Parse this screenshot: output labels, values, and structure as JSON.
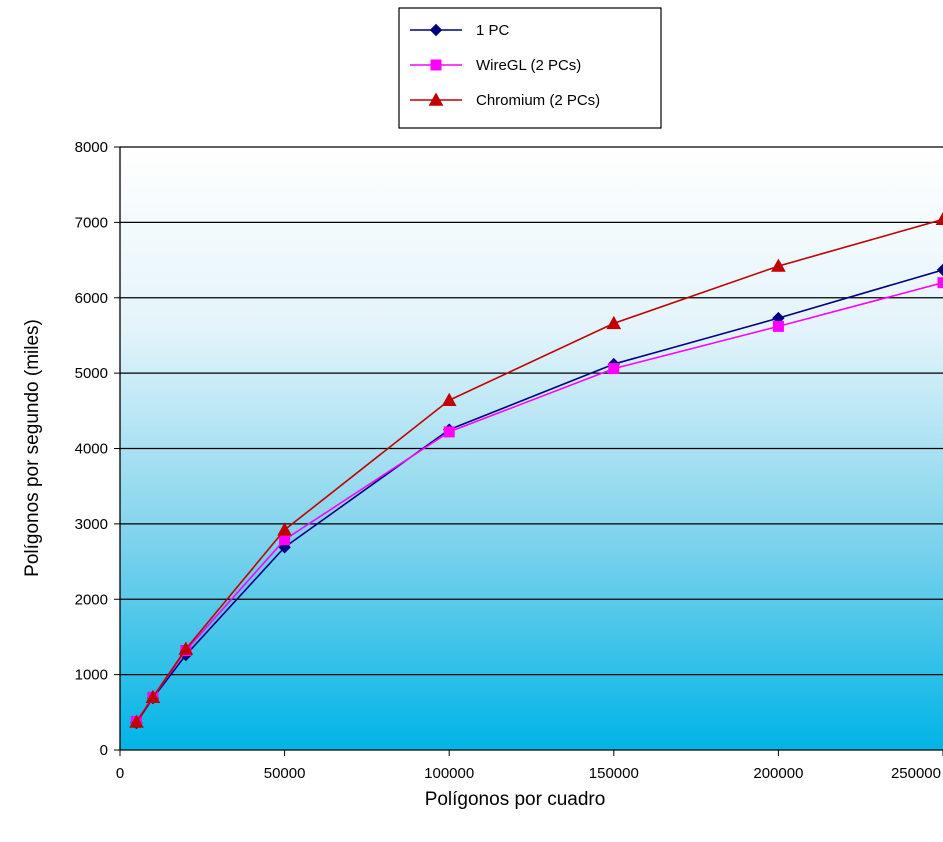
{
  "chart_data": {
    "type": "line",
    "xlabel": "Polígonos por cuadro",
    "ylabel": "Polígonos por segundo (miles)",
    "x": [
      5000,
      10000,
      20000,
      50000,
      100000,
      150000,
      200000,
      250000
    ],
    "xlim": [
      0,
      250000
    ],
    "ylim": [
      0,
      8000
    ],
    "xticks": [
      "0",
      "50000",
      "100000",
      "150000",
      "200000",
      "250000"
    ],
    "yticks": [
      "0",
      "1000",
      "2000",
      "3000",
      "4000",
      "5000",
      "6000",
      "7000",
      "8000"
    ],
    "grid": true,
    "legend_position": "top-center",
    "series": [
      {
        "name": "1 PC",
        "color": "#000080",
        "marker": "diamond",
        "values": [
          360,
          690,
          1260,
          2690,
          4250,
          5120,
          5730,
          6370
        ]
      },
      {
        "name": "WireGL (2 PCs)",
        "color": "#ff00ff",
        "marker": "square",
        "values": [
          380,
          700,
          1320,
          2790,
          4220,
          5060,
          5620,
          6200
        ]
      },
      {
        "name": "Chromium (2 PCs)",
        "color": "#c00000",
        "marker": "triangle",
        "values": [
          370,
          700,
          1340,
          2920,
          4640,
          5660,
          6420,
          7040
        ]
      }
    ]
  }
}
